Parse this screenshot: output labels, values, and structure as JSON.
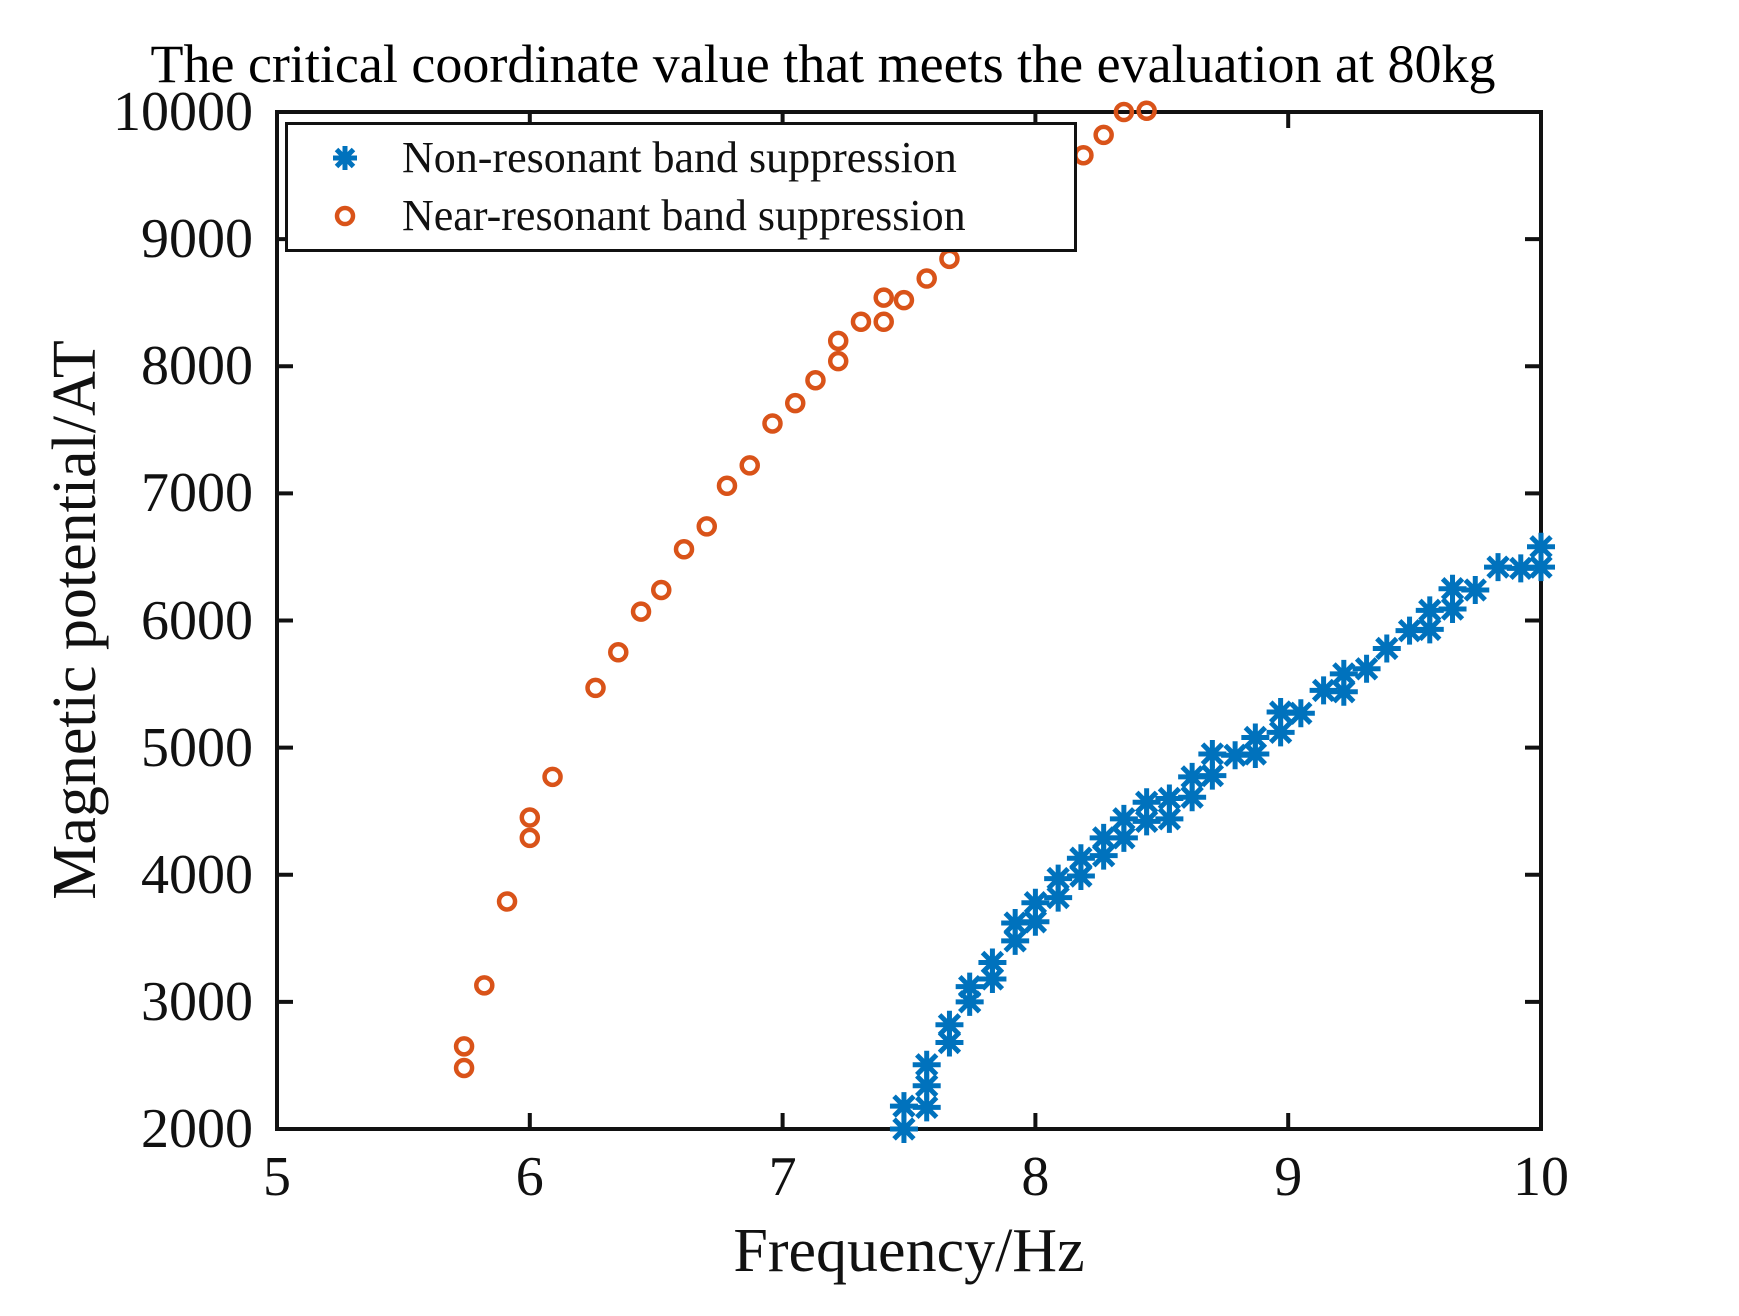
{
  "chart_data": {
    "type": "scatter",
    "title": "The critical coordinate value that meets the evaluation at 80kg",
    "xlabel": "Frequency/Hz",
    "ylabel": "Magnetic potential/AT",
    "xlim": [
      5,
      10
    ],
    "ylim": [
      2000,
      10000
    ],
    "xticks": [
      5,
      6,
      7,
      8,
      9,
      10
    ],
    "yticks": [
      2000,
      3000,
      4000,
      5000,
      6000,
      7000,
      8000,
      9000,
      10000
    ],
    "grid": false,
    "legend_position": "top-left",
    "axis_color": "#111111",
    "series": [
      {
        "name": "Non-resonant band suppression",
        "marker": "asterisk",
        "color": "#0072BD",
        "points": [
          [
            7.48,
            2000
          ],
          [
            7.48,
            2180
          ],
          [
            7.57,
            2170
          ],
          [
            7.57,
            2340
          ],
          [
            7.57,
            2505
          ],
          [
            7.66,
            2680
          ],
          [
            7.66,
            2820
          ],
          [
            7.74,
            3000
          ],
          [
            7.74,
            3120
          ],
          [
            7.83,
            3180
          ],
          [
            7.83,
            3310
          ],
          [
            7.92,
            3480
          ],
          [
            7.92,
            3620
          ],
          [
            8.0,
            3630
          ],
          [
            8.0,
            3780
          ],
          [
            8.09,
            3820
          ],
          [
            8.09,
            3970
          ],
          [
            8.18,
            3990
          ],
          [
            8.18,
            4130
          ],
          [
            8.27,
            4150
          ],
          [
            8.27,
            4290
          ],
          [
            8.35,
            4290
          ],
          [
            8.35,
            4440
          ],
          [
            8.44,
            4420
          ],
          [
            8.44,
            4570
          ],
          [
            8.53,
            4440
          ],
          [
            8.53,
            4600
          ],
          [
            8.62,
            4610
          ],
          [
            8.62,
            4770
          ],
          [
            8.7,
            4780
          ],
          [
            8.7,
            4950
          ],
          [
            8.79,
            4940
          ],
          [
            8.87,
            4950
          ],
          [
            8.87,
            5080
          ],
          [
            8.97,
            5120
          ],
          [
            8.97,
            5280
          ],
          [
            9.05,
            5270
          ],
          [
            9.14,
            5450
          ],
          [
            9.22,
            5440
          ],
          [
            9.22,
            5580
          ],
          [
            9.31,
            5620
          ],
          [
            9.39,
            5780
          ],
          [
            9.48,
            5920
          ],
          [
            9.56,
            5930
          ],
          [
            9.56,
            6080
          ],
          [
            9.65,
            6090
          ],
          [
            9.65,
            6250
          ],
          [
            9.74,
            6240
          ],
          [
            9.83,
            6420
          ],
          [
            9.92,
            6410
          ],
          [
            10.0,
            6420
          ],
          [
            10.0,
            6580
          ]
        ]
      },
      {
        "name": "Near-resonant band suppression",
        "marker": "circle",
        "color": "#D95319",
        "points": [
          [
            5.74,
            2480
          ],
          [
            5.74,
            2650
          ],
          [
            5.82,
            3130
          ],
          [
            5.91,
            3790
          ],
          [
            6.0,
            4290
          ],
          [
            6.0,
            4450
          ],
          [
            6.09,
            4770
          ],
          [
            6.26,
            5470
          ],
          [
            6.35,
            5750
          ],
          [
            6.44,
            6070
          ],
          [
            6.52,
            6240
          ],
          [
            6.61,
            6560
          ],
          [
            6.7,
            6740
          ],
          [
            6.78,
            7060
          ],
          [
            6.87,
            7220
          ],
          [
            6.96,
            7550
          ],
          [
            7.05,
            7710
          ],
          [
            7.13,
            7890
          ],
          [
            7.22,
            8040
          ],
          [
            7.22,
            8200
          ],
          [
            7.31,
            8350
          ],
          [
            7.4,
            8350
          ],
          [
            7.4,
            8540
          ],
          [
            7.48,
            8520
          ],
          [
            7.57,
            8690
          ],
          [
            7.66,
            8845
          ],
          [
            8.19,
            9660
          ],
          [
            8.27,
            9820
          ],
          [
            8.35,
            10000
          ],
          [
            8.44,
            10010
          ]
        ]
      }
    ]
  }
}
